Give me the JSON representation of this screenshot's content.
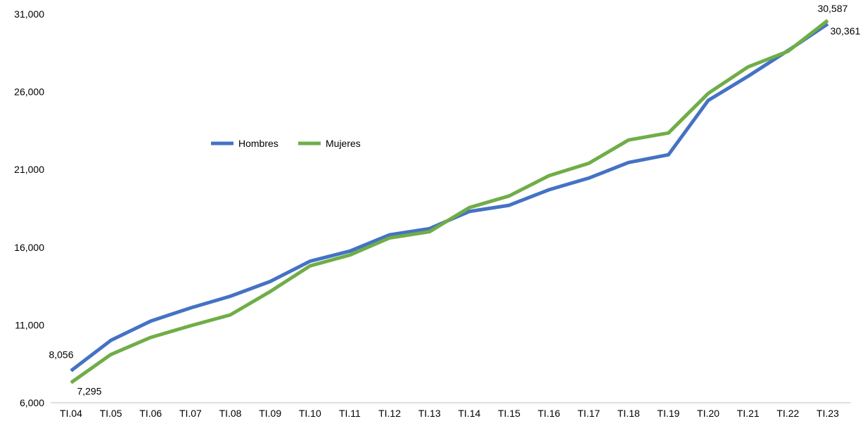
{
  "chart_data": {
    "type": "line",
    "categories": [
      "TI.04",
      "TI.05",
      "TI.06",
      "TI.07",
      "TI.08",
      "TI.09",
      "TI.10",
      "TI.11",
      "TI.12",
      "TI.13",
      "TI.14",
      "TI.15",
      "TI.16",
      "TI.17",
      "TI.18",
      "TI.19",
      "TI.20",
      "TI.21",
      "TI.22",
      "TI.23"
    ],
    "series": [
      {
        "name": "Hombres",
        "color": "#4472C4",
        "values": [
          8056,
          10010,
          11250,
          12100,
          12850,
          13800,
          15100,
          15750,
          16800,
          17200,
          18300,
          18700,
          19700,
          20450,
          21450,
          21950,
          25450,
          27000,
          28650,
          30361
        ]
      },
      {
        "name": "Mujeres",
        "color": "#70AD47",
        "values": [
          7295,
          9100,
          10200,
          10950,
          11650,
          13150,
          14800,
          15500,
          16600,
          17000,
          18550,
          19300,
          20600,
          21400,
          22900,
          23350,
          25900,
          27600,
          28600,
          30587
        ]
      }
    ],
    "ylim": [
      6000,
      31000
    ],
    "yticks": [
      "31,000",
      "26,000",
      "21,000",
      "16,000",
      "11,000",
      "6,000"
    ],
    "data_labels": [
      {
        "series": "Hombres",
        "category": "TI.04",
        "text": "8,056"
      },
      {
        "series": "Mujeres",
        "category": "TI.04",
        "text": "7,295"
      },
      {
        "series": "Mujeres",
        "category": "TI.23",
        "text": "30,587"
      },
      {
        "series": "Hombres",
        "category": "TI.23",
        "text": "30,361"
      }
    ],
    "legend": {
      "position": "upper-left-inside",
      "items": [
        "Hombres",
        "Mujeres"
      ]
    },
    "grid": false
  }
}
